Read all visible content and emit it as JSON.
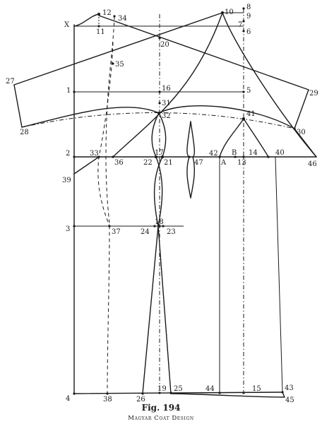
{
  "caption": {
    "figure": "Fig. 194",
    "title": "Magyar Coat Design"
  },
  "labels": {
    "x": "X",
    "p1": "1",
    "p2": "2",
    "p3": "3",
    "p4": "4",
    "p5": "5",
    "p6": "6",
    "p7": "7",
    "p8": "8",
    "p9": "9",
    "p10": "10",
    "p11": "11",
    "p12": "12",
    "p13": "13",
    "p14": "14",
    "p15": "15",
    "p16": "16",
    "p17": "17",
    "p18": "18",
    "p19": "19",
    "p20": "20",
    "p21": "21",
    "p22": "22",
    "p23": "23",
    "p24": "24",
    "p25": "25",
    "p26": "26",
    "p27": "27",
    "p28": "28",
    "p29": "29",
    "p30": "30",
    "p31": "31",
    "p32": "32",
    "p33": "33",
    "p34": "34",
    "p35": "35",
    "p36": "36",
    "p37": "37",
    "p38": "38",
    "p39": "39",
    "p40": "40",
    "p41": "41",
    "p42": "42",
    "p43": "43",
    "p44": "44",
    "p45": "45",
    "p46": "46",
    "p47": "47",
    "pa": "A",
    "pb": "B"
  }
}
